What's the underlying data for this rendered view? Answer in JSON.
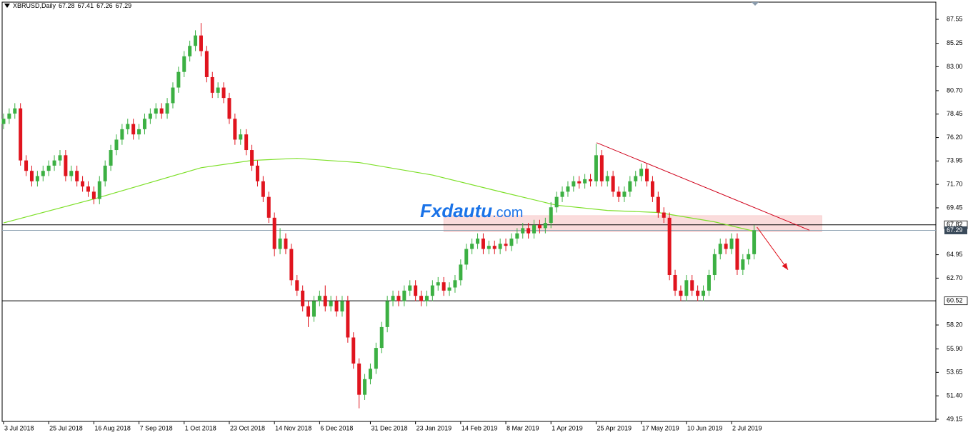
{
  "chart_data": {
    "type": "candlestick",
    "symbol": "XBRUSD,Daily",
    "header_ohlc": [
      67.28,
      67.41,
      67.26,
      67.29
    ],
    "up_color": "#3cb043",
    "down_color": "#e0141e",
    "xlim": [
      -0.25,
      165.2
    ],
    "ylim": [
      48.94,
      89.2
    ],
    "yticks": [
      87.55,
      85.25,
      {
        "value": 83,
        "label": "83.00"
      },
      {
        "value": 80.7,
        "label": "80.70"
      },
      78.45,
      {
        "value": 76.2,
        "label": "76.20"
      },
      73.95,
      {
        "value": 71.7,
        "label": "71.70"
      },
      69.45,
      64.95,
      {
        "value": 62.7,
        "label": "62.70"
      },
      {
        "value": 58.2,
        "label": "58.20"
      },
      {
        "value": 55.9,
        "label": "55.90"
      },
      53.65,
      {
        "value": 51.4,
        "label": "51.40"
      },
      49.15
    ],
    "xticks": [
      {
        "value": 0,
        "label": "3 Jul 2018"
      },
      {
        "value": 8,
        "label": "25 Jul 2018"
      },
      {
        "value": 16,
        "label": "16 Aug 2018"
      },
      {
        "value": 24,
        "label": "7 Sep 2018"
      },
      {
        "value": 32,
        "label": "1 Oct 2018"
      },
      {
        "value": 40,
        "label": "23 Oct 2018"
      },
      {
        "value": 48,
        "label": "14 Nov 2018"
      },
      {
        "value": 56,
        "label": "6 Dec 2018"
      },
      {
        "value": 65,
        "label": "31 Dec 2018"
      },
      {
        "value": 73,
        "label": "23 Jan 2019"
      },
      {
        "value": 81,
        "label": "14 Feb 2019"
      },
      {
        "value": 89,
        "label": "8 Mar 2019"
      },
      {
        "value": 97,
        "label": "1 Apr 2019"
      },
      {
        "value": 105,
        "label": "25 Apr 2019"
      },
      {
        "value": 113,
        "label": "17 May 2019"
      },
      {
        "value": 121,
        "label": "10 Jun 2019"
      },
      {
        "value": 129,
        "label": "2 Jul 2019"
      }
    ],
    "candles": {
      "open": [
        77.5,
        78.0,
        78.5,
        79.0,
        74.0,
        73.0,
        72.0,
        72.5,
        73.0,
        73.5,
        74.0,
        74.5,
        72.5,
        73.0,
        72.0,
        71.5,
        71.0,
        70.3,
        72.0,
        73.5,
        75.0,
        76.0,
        77.0,
        77.5,
        76.5,
        77.0,
        78.0,
        78.5,
        79.0,
        78.5,
        79.5,
        81.0,
        82.5,
        84.0,
        85.0,
        86.0,
        84.5,
        82.0,
        80.5,
        81.0,
        80.0,
        78.0,
        76.0,
        76.5,
        75.0,
        73.5,
        72.0,
        70.5,
        68.5,
        65.5,
        66.5,
        65.5,
        62.5,
        61.5,
        60.0,
        59.0,
        60.5,
        61.0,
        60.0,
        60.5,
        59.5,
        60.5,
        57.0,
        54.5,
        51.5,
        53.0,
        54.0,
        56.0,
        58.0,
        60.5,
        61.0,
        60.5,
        61.5,
        62.0,
        61.0,
        60.5,
        61.0,
        62.0,
        62.3,
        61.5,
        61.8,
        62.5,
        64.0,
        65.5,
        66.0,
        66.5,
        65.5,
        65.8,
        65.5,
        66.0,
        65.8,
        66.5,
        67.0,
        67.5,
        67.0,
        67.8,
        67.5,
        68.0,
        69.5,
        70.5,
        71.0,
        71.5,
        72.0,
        71.8,
        72.2,
        72.0,
        74.5,
        72.0,
        72.5,
        71.0,
        70.5,
        71.0,
        72.0,
        72.5,
        73.2,
        72.0,
        70.5,
        69.0,
        68.5,
        63.0,
        61.5,
        61.0,
        62.5,
        61.5,
        61.0,
        61.5,
        63.0,
        65.0,
        66.0,
        65.5,
        66.5,
        63.5,
        64.5,
        65.0
      ],
      "high": [
        78.5,
        79.0,
        79.5,
        79.5,
        74.5,
        73.5,
        73.0,
        73.5,
        74.0,
        74.5,
        75.0,
        75.0,
        73.5,
        73.5,
        72.5,
        72.0,
        71.5,
        72.5,
        74.0,
        75.5,
        76.5,
        77.5,
        78.0,
        78.0,
        77.5,
        78.5,
        79.0,
        79.5,
        79.5,
        80.0,
        81.5,
        83.0,
        84.5,
        85.5,
        86.5,
        87.2,
        85.0,
        82.5,
        81.5,
        81.5,
        80.5,
        78.5,
        77.0,
        77.0,
        75.5,
        74.0,
        72.5,
        71.0,
        69.0,
        67.5,
        67.0,
        66.0,
        63.0,
        62.0,
        60.5,
        61.0,
        61.5,
        62.0,
        61.0,
        61.0,
        61.0,
        61.0,
        57.5,
        55.0,
        53.5,
        54.5,
        56.5,
        58.5,
        61.0,
        61.5,
        61.5,
        62.0,
        62.5,
        62.5,
        61.5,
        61.5,
        62.5,
        62.8,
        62.8,
        62.3,
        63.0,
        64.5,
        66.0,
        66.5,
        67.0,
        67.0,
        66.3,
        66.3,
        66.5,
        66.5,
        67.0,
        67.5,
        68.0,
        68.0,
        68.3,
        68.3,
        68.5,
        70.0,
        71.0,
        71.5,
        72.0,
        72.5,
        72.5,
        72.7,
        72.7,
        75.6,
        75.0,
        73.0,
        73.0,
        71.5,
        71.5,
        72.5,
        73.0,
        73.7,
        73.7,
        72.5,
        71.0,
        69.5,
        69.0,
        63.5,
        62.0,
        63.0,
        63.0,
        62.0,
        62.0,
        63.5,
        65.5,
        66.5,
        66.5,
        67.0,
        67.0,
        65.0,
        65.5,
        67.8
      ],
      "low": [
        77.0,
        77.5,
        78.0,
        73.5,
        72.5,
        71.5,
        71.5,
        72.0,
        72.5,
        73.0,
        73.5,
        72.0,
        72.0,
        71.5,
        71.0,
        70.5,
        69.8,
        69.8,
        71.5,
        73.0,
        74.5,
        75.5,
        76.5,
        76.0,
        76.0,
        76.5,
        77.5,
        78.0,
        78.0,
        78.0,
        79.0,
        80.5,
        82.0,
        83.5,
        84.5,
        84.0,
        81.5,
        80.0,
        80.0,
        79.5,
        77.5,
        75.5,
        75.5,
        74.5,
        73.0,
        71.5,
        70.0,
        68.0,
        64.8,
        65.0,
        65.0,
        62.0,
        61.0,
        59.5,
        58.0,
        58.5,
        60.0,
        59.5,
        59.5,
        59.0,
        59.0,
        56.5,
        54.0,
        50.2,
        51.0,
        52.5,
        53.5,
        55.5,
        57.5,
        60.0,
        60.0,
        60.0,
        61.0,
        60.5,
        60.0,
        60.0,
        60.5,
        61.5,
        61.0,
        61.0,
        61.3,
        62.0,
        63.5,
        65.0,
        65.5,
        65.0,
        65.0,
        65.0,
        65.0,
        65.3,
        65.3,
        66.0,
        66.5,
        66.5,
        66.5,
        67.0,
        67.0,
        67.5,
        69.0,
        70.0,
        70.5,
        71.0,
        71.3,
        71.3,
        71.5,
        71.5,
        71.5,
        71.5,
        70.5,
        70.0,
        70.0,
        70.5,
        71.5,
        72.0,
        71.5,
        70.0,
        68.5,
        68.0,
        62.5,
        61.0,
        60.5,
        60.5,
        61.0,
        60.5,
        60.5,
        61.0,
        62.5,
        64.5,
        65.0,
        65.0,
        63.0,
        63.0,
        64.0,
        64.5
      ],
      "close": [
        78.0,
        78.5,
        79.0,
        74.0,
        73.0,
        72.0,
        72.5,
        73.0,
        73.5,
        74.0,
        74.5,
        72.5,
        73.0,
        72.0,
        71.5,
        71.0,
        70.3,
        72.0,
        73.5,
        75.0,
        76.0,
        77.0,
        77.5,
        76.5,
        77.0,
        78.0,
        78.5,
        79.0,
        78.5,
        79.5,
        81.0,
        82.5,
        84.0,
        85.0,
        86.0,
        84.5,
        82.0,
        80.5,
        81.0,
        80.0,
        78.0,
        76.0,
        76.5,
        75.0,
        73.5,
        72.0,
        70.5,
        68.5,
        65.5,
        66.5,
        65.5,
        62.5,
        61.5,
        60.0,
        59.0,
        60.5,
        61.0,
        60.0,
        60.5,
        59.5,
        60.5,
        57.0,
        54.5,
        51.5,
        53.0,
        54.0,
        56.0,
        58.0,
        60.5,
        61.0,
        60.5,
        61.5,
        62.0,
        61.0,
        60.5,
        61.0,
        62.0,
        62.3,
        61.5,
        61.8,
        62.5,
        64.0,
        65.5,
        66.0,
        66.5,
        65.5,
        65.8,
        65.5,
        66.0,
        65.8,
        66.5,
        67.0,
        67.5,
        67.0,
        67.8,
        67.5,
        68.0,
        69.5,
        70.5,
        71.0,
        71.5,
        72.0,
        71.8,
        72.2,
        72.0,
        74.5,
        72.0,
        72.5,
        71.0,
        70.5,
        71.0,
        72.0,
        72.5,
        73.2,
        72.0,
        70.5,
        69.0,
        68.5,
        63.0,
        61.5,
        61.0,
        62.5,
        61.5,
        61.0,
        61.5,
        63.0,
        65.0,
        66.0,
        65.5,
        66.5,
        63.5,
        64.5,
        65.0,
        67.29
      ]
    },
    "moving_average": {
      "color": "#7ee02a",
      "x": [
        0,
        16,
        35,
        44,
        52,
        63,
        76,
        88,
        98,
        107,
        116,
        126,
        133
      ],
      "values": [
        68.0,
        70.3,
        73.3,
        74.0,
        74.2,
        73.8,
        72.6,
        71.0,
        69.7,
        69.2,
        69.0,
        68.1,
        67.2
      ]
    },
    "levels": [
      67.82,
      60.52
    ],
    "last_price": 67.29,
    "zone": {
      "color": "#fadcdc",
      "x": [
        78,
        145
      ],
      "y": [
        67.15,
        68.7
      ]
    },
    "trend_line": {
      "color": "#d0021b",
      "x": [
        105.1,
        142.8
      ],
      "y": [
        75.7,
        67.3
      ]
    },
    "arrow": {
      "color": "#e0141e",
      "x": [
        133.5,
        139
      ],
      "y": [
        67.6,
        63.5
      ]
    }
  },
  "watermark": {
    "brand": "Fxdautu",
    "suffix": ".com"
  }
}
